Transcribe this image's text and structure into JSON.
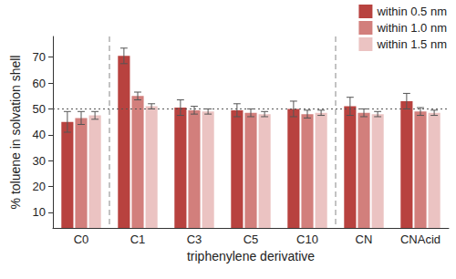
{
  "chart_data": {
    "type": "bar",
    "categories": [
      "C0",
      "C1",
      "C3",
      "C5",
      "C10",
      "CN",
      "CNAcid"
    ],
    "series": [
      {
        "name": "within 0.5 nm",
        "color": "#b8423f",
        "values": [
          45,
          70.5,
          50.5,
          49.5,
          50,
          51,
          53
        ],
        "errors": [
          4,
          3,
          3,
          2.5,
          3,
          3.5,
          3
        ]
      },
      {
        "name": "within 1.0 nm",
        "color": "#d27f7c",
        "values": [
          46.5,
          55,
          49.5,
          48.5,
          48,
          48.5,
          49
        ],
        "errors": [
          2.5,
          1.5,
          1.5,
          1.5,
          1.5,
          1.5,
          1.5
        ]
      },
      {
        "name": "within 1.5 nm",
        "color": "#ebc3c2",
        "values": [
          47.5,
          51,
          49,
          48,
          48.5,
          48,
          48.5
        ],
        "errors": [
          1.5,
          1,
          1,
          1,
          1,
          1,
          1
        ]
      }
    ],
    "x_label": "triphenylene derivative",
    "y_label": "% toluene in solvation shell",
    "ylim": [
      4,
      78
    ],
    "yticks": [
      10,
      20,
      30,
      40,
      50,
      60,
      70
    ],
    "reference_line": 50,
    "separators_after": [
      "C0",
      "C10"
    ],
    "legend": "upper right",
    "grid": false
  }
}
